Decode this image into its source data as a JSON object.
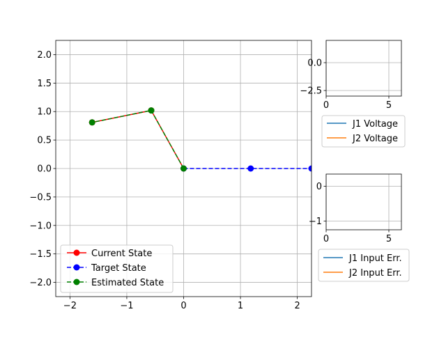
{
  "chart_data": [
    {
      "type": "line",
      "title": "",
      "xlabel": "",
      "ylabel": "",
      "xlim": [
        -2.25,
        2.25
      ],
      "ylim": [
        -2.25,
        2.25
      ],
      "grid": true,
      "legend_placement": "lower-left",
      "xticks": [
        -2,
        -1,
        0,
        1,
        2
      ],
      "xtick_labels": [
        "−2",
        "−1",
        "0",
        "1",
        "2"
      ],
      "yticks": [
        2.0,
        1.5,
        1.0,
        0.5,
        0.0,
        -0.5,
        -1.0,
        -1.5,
        -2.0
      ],
      "ytick_labels": [
        "2.0",
        "1.5",
        "1.0",
        "0.5",
        "0.0",
        "−0.5",
        "−1.0",
        "−1.5",
        "−2.0"
      ],
      "series": [
        {
          "name": "Current State",
          "color": "#ff0000",
          "style": "solid",
          "x": [
            0,
            -0.57,
            -1.61
          ],
          "y": [
            0,
            1.02,
            0.81
          ]
        },
        {
          "name": "Target State",
          "color": "#0000ff",
          "style": "dashed",
          "x": [
            0,
            1.18,
            2.25
          ],
          "y": [
            0,
            0,
            0
          ]
        },
        {
          "name": "Estimated State",
          "color": "#008000",
          "style": "dashed",
          "x": [
            0,
            -0.57,
            -1.61
          ],
          "y": [
            0,
            1.02,
            0.81
          ]
        }
      ]
    },
    {
      "type": "line",
      "title": "",
      "xlim": [
        0,
        6
      ],
      "ylim": [
        -3,
        2
      ],
      "grid": true,
      "legend_placement": "below",
      "xticks": [
        0,
        5
      ],
      "xtick_labels": [
        "0",
        "5"
      ],
      "yticks": [
        0.0,
        -2.5
      ],
      "ytick_labels": [
        "0.0",
        "−2.5"
      ],
      "series": [
        {
          "name": "J1 Voltage",
          "color": "#1f77b4",
          "x": [],
          "y": []
        },
        {
          "name": "J2 Voltage",
          "color": "#ff7f0e",
          "x": [],
          "y": []
        }
      ]
    },
    {
      "type": "line",
      "title": "",
      "xlim": [
        0,
        6
      ],
      "ylim": [
        -1.25,
        0.35
      ],
      "grid": true,
      "legend_placement": "below",
      "xticks": [
        0,
        5
      ],
      "xtick_labels": [
        "0",
        "5"
      ],
      "yticks": [
        0,
        -1
      ],
      "ytick_labels": [
        "0",
        "−1"
      ],
      "series": [
        {
          "name": "J1 Input Err.",
          "color": "#1f77b4",
          "x": [],
          "y": []
        },
        {
          "name": "J2 Input Err.",
          "color": "#ff7f0e",
          "x": [],
          "y": []
        }
      ]
    }
  ]
}
